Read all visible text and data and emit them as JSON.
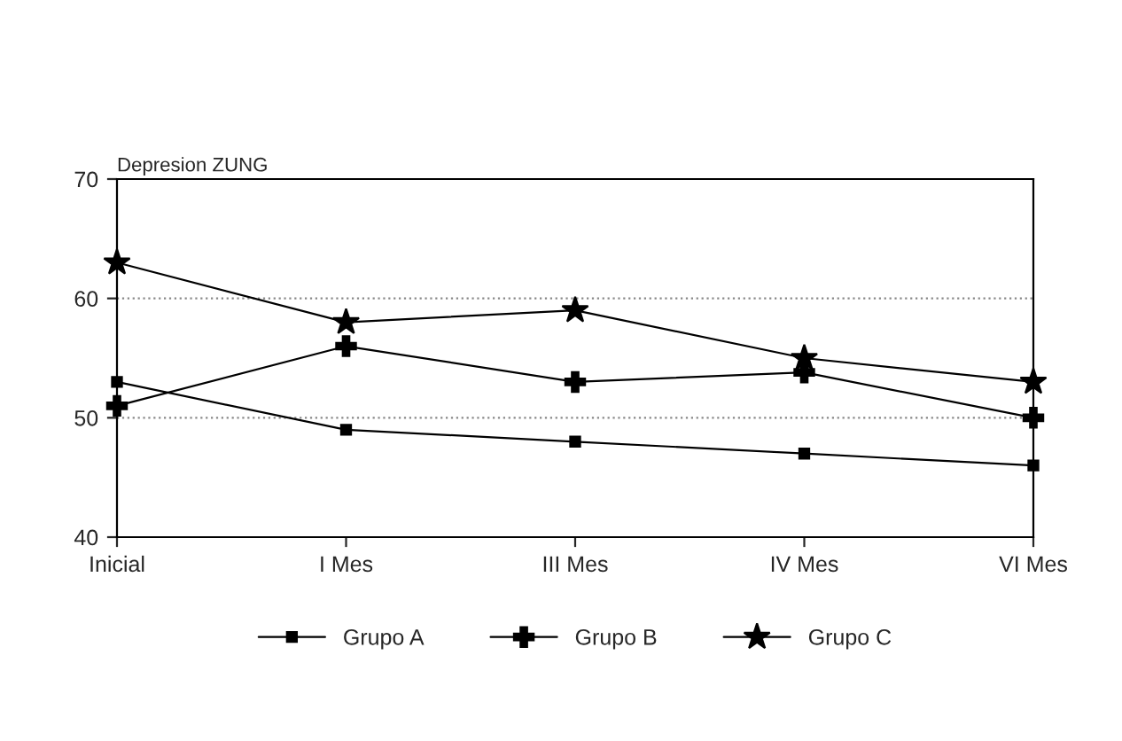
{
  "chart_data": {
    "type": "line",
    "ylabel": "Depresion ZUNG",
    "categories": [
      "Inicial",
      "I Mes",
      "III Mes",
      "IV Mes",
      "VI Mes"
    ],
    "series": [
      {
        "name": "Grupo A",
        "color": "#000000",
        "marker": "square",
        "values": [
          53,
          49,
          48,
          47,
          46
        ]
      },
      {
        "name": "Grupo B",
        "color": "#000000",
        "marker": "cross",
        "values": [
          51,
          56,
          53,
          53.8,
          50
        ]
      },
      {
        "name": "Grupo C",
        "color": "#000000",
        "marker": "star",
        "values": [
          63,
          58,
          59,
          55,
          53
        ]
      }
    ],
    "ylim": [
      40,
      70
    ],
    "yticks": [
      40,
      50,
      60,
      70
    ],
    "grid": "y",
    "legend": "bottom",
    "line_style": "solid"
  }
}
